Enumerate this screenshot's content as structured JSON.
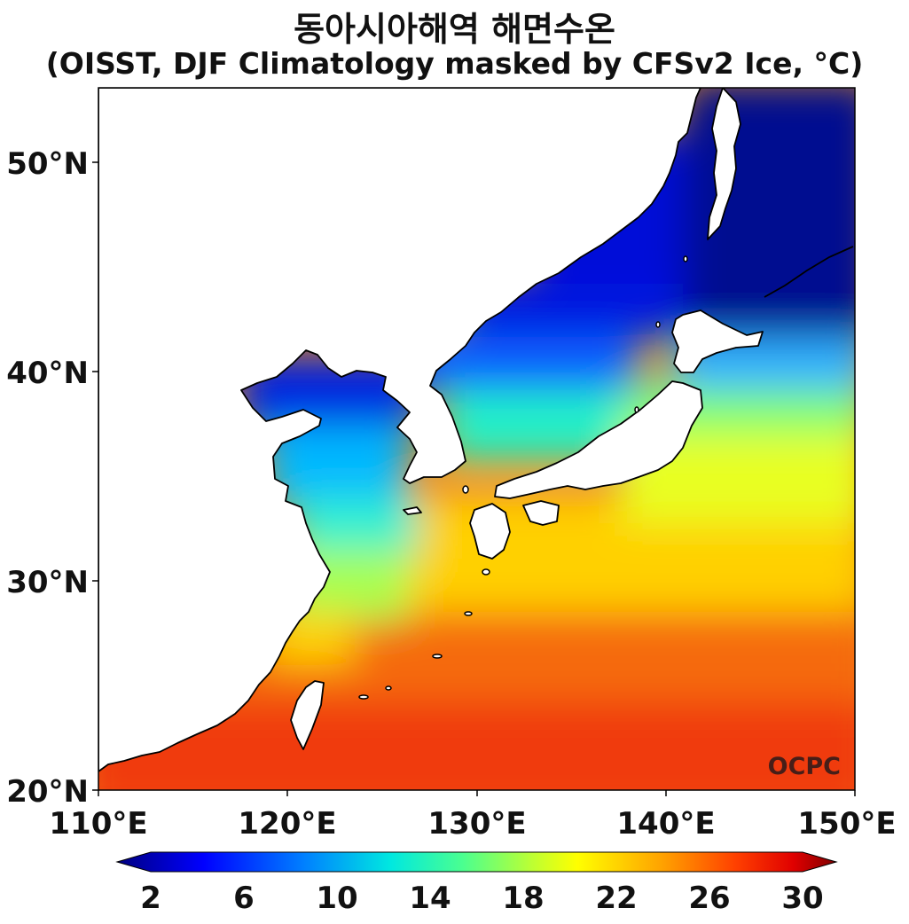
{
  "title": {
    "line1": "동아시아해역 해면수온",
    "line2": "(OISST, DJF Climatology masked by CFSv2 Ice, °C)"
  },
  "map": {
    "lon_range": [
      110,
      150
    ],
    "lat_range": [
      20,
      53.5
    ],
    "x_ticks": [
      "110°E",
      "120°E",
      "130°E",
      "140°E",
      "150°E"
    ],
    "y_ticks": [
      "20°N",
      "30°N",
      "40°N",
      "50°N"
    ],
    "watermark": "OCPC",
    "land_color": "#ffffff",
    "coast_color": "#000000"
  },
  "colorbar": {
    "ticks": [
      "2",
      "6",
      "10",
      "14",
      "18",
      "22",
      "26",
      "30"
    ],
    "range": [
      2,
      30
    ],
    "colors": [
      "#000080",
      "#0000ff",
      "#0080ff",
      "#00e0e8",
      "#3cff90",
      "#b0ff40",
      "#ffff00",
      "#ffa000",
      "#ff4000",
      "#e00000",
      "#800000"
    ]
  }
}
